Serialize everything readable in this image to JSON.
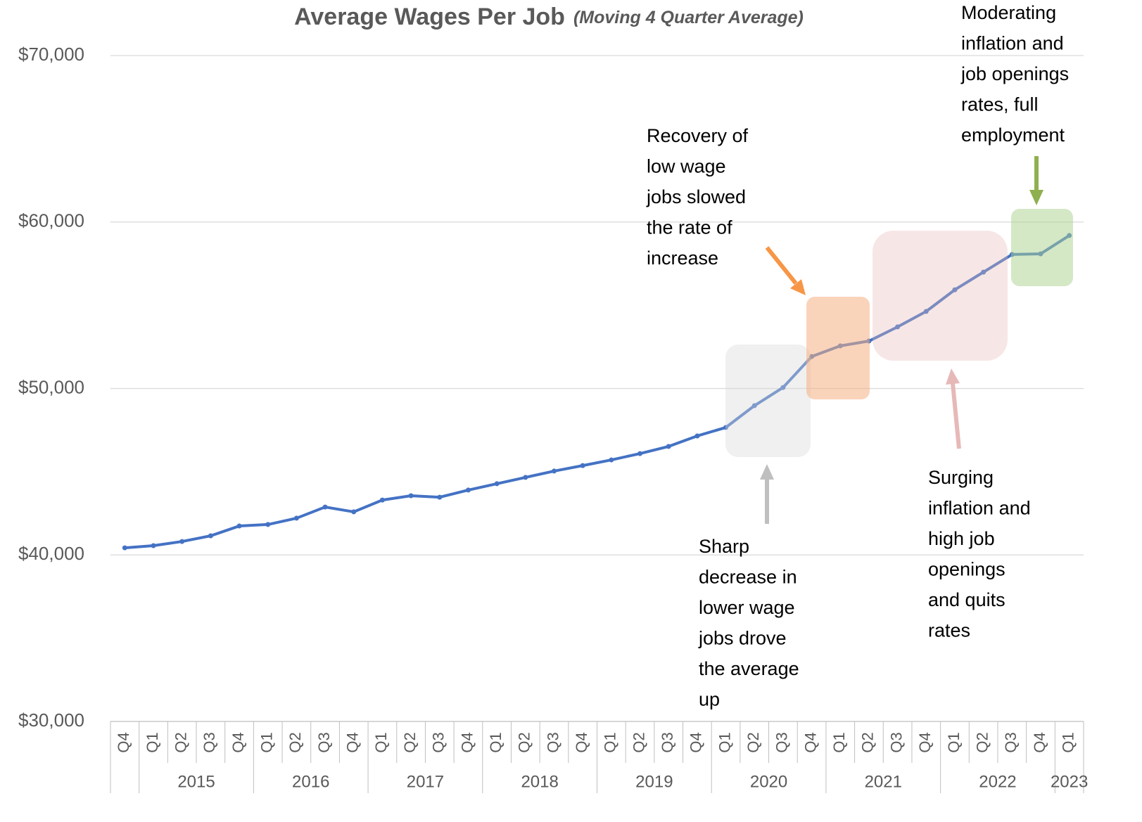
{
  "chart_data": {
    "type": "line",
    "title": "Average Wages Per Job",
    "subtitle": "(Moving 4 Quarter Average)",
    "category_groups": [
      {
        "name": null,
        "categories": [
          "Q4"
        ]
      },
      {
        "name": "2015",
        "categories": [
          "Q1",
          "Q2",
          "Q3",
          "Q4"
        ]
      },
      {
        "name": "2016",
        "categories": [
          "Q1",
          "Q2",
          "Q3",
          "Q4"
        ]
      },
      {
        "name": "2017",
        "categories": [
          "Q1",
          "Q2",
          "Q3",
          "Q4"
        ]
      },
      {
        "name": "2018",
        "categories": [
          "Q1",
          "Q2",
          "Q3",
          "Q4"
        ]
      },
      {
        "name": "2019",
        "categories": [
          "Q1",
          "Q2",
          "Q3",
          "Q4"
        ]
      },
      {
        "name": "2020",
        "categories": [
          "Q1",
          "Q2",
          "Q3",
          "Q4"
        ]
      },
      {
        "name": "2021",
        "categories": [
          "Q1",
          "Q2",
          "Q3",
          "Q4"
        ]
      },
      {
        "name": "2022",
        "categories": [
          "Q1",
          "Q2",
          "Q3",
          "Q4"
        ]
      },
      {
        "name": "2023",
        "categories": [
          "Q1"
        ]
      }
    ],
    "values": [
      40430,
      40560,
      40810,
      41150,
      41740,
      41830,
      42210,
      42880,
      42590,
      43300,
      43560,
      43470,
      43900,
      44280,
      44660,
      45040,
      45370,
      45710,
      46090,
      46520,
      47150,
      47660,
      48970,
      50060,
      51920,
      52560,
      52850,
      53700,
      54630,
      55930,
      56990,
      58050,
      58090,
      59190
    ],
    "color": "#4472c4",
    "ylim": [
      30000,
      70000
    ],
    "yticks": [
      {
        "value": 30000,
        "label": "$30,000"
      },
      {
        "value": 40000,
        "label": "$40,000"
      },
      {
        "value": 50000,
        "label": "$50,000"
      },
      {
        "value": 60000,
        "label": "$60,000"
      },
      {
        "value": 70000,
        "label": "$70,000"
      }
    ],
    "grid": true,
    "annotations": [
      {
        "lines": [
          "Recovery of",
          "low wage",
          "jobs slowed",
          "the rate of",
          "increase"
        ]
      },
      {
        "lines": [
          "Sharp",
          "decrease in",
          "lower wage",
          "jobs drove",
          "the average",
          "up"
        ]
      },
      {
        "lines": [
          "Surging",
          "inflation and",
          "high job",
          "openings",
          "and quits",
          "rates"
        ]
      },
      {
        "lines": [
          "Moderating",
          "inflation and",
          "job openings",
          "rates, full",
          "employment"
        ]
      }
    ]
  }
}
